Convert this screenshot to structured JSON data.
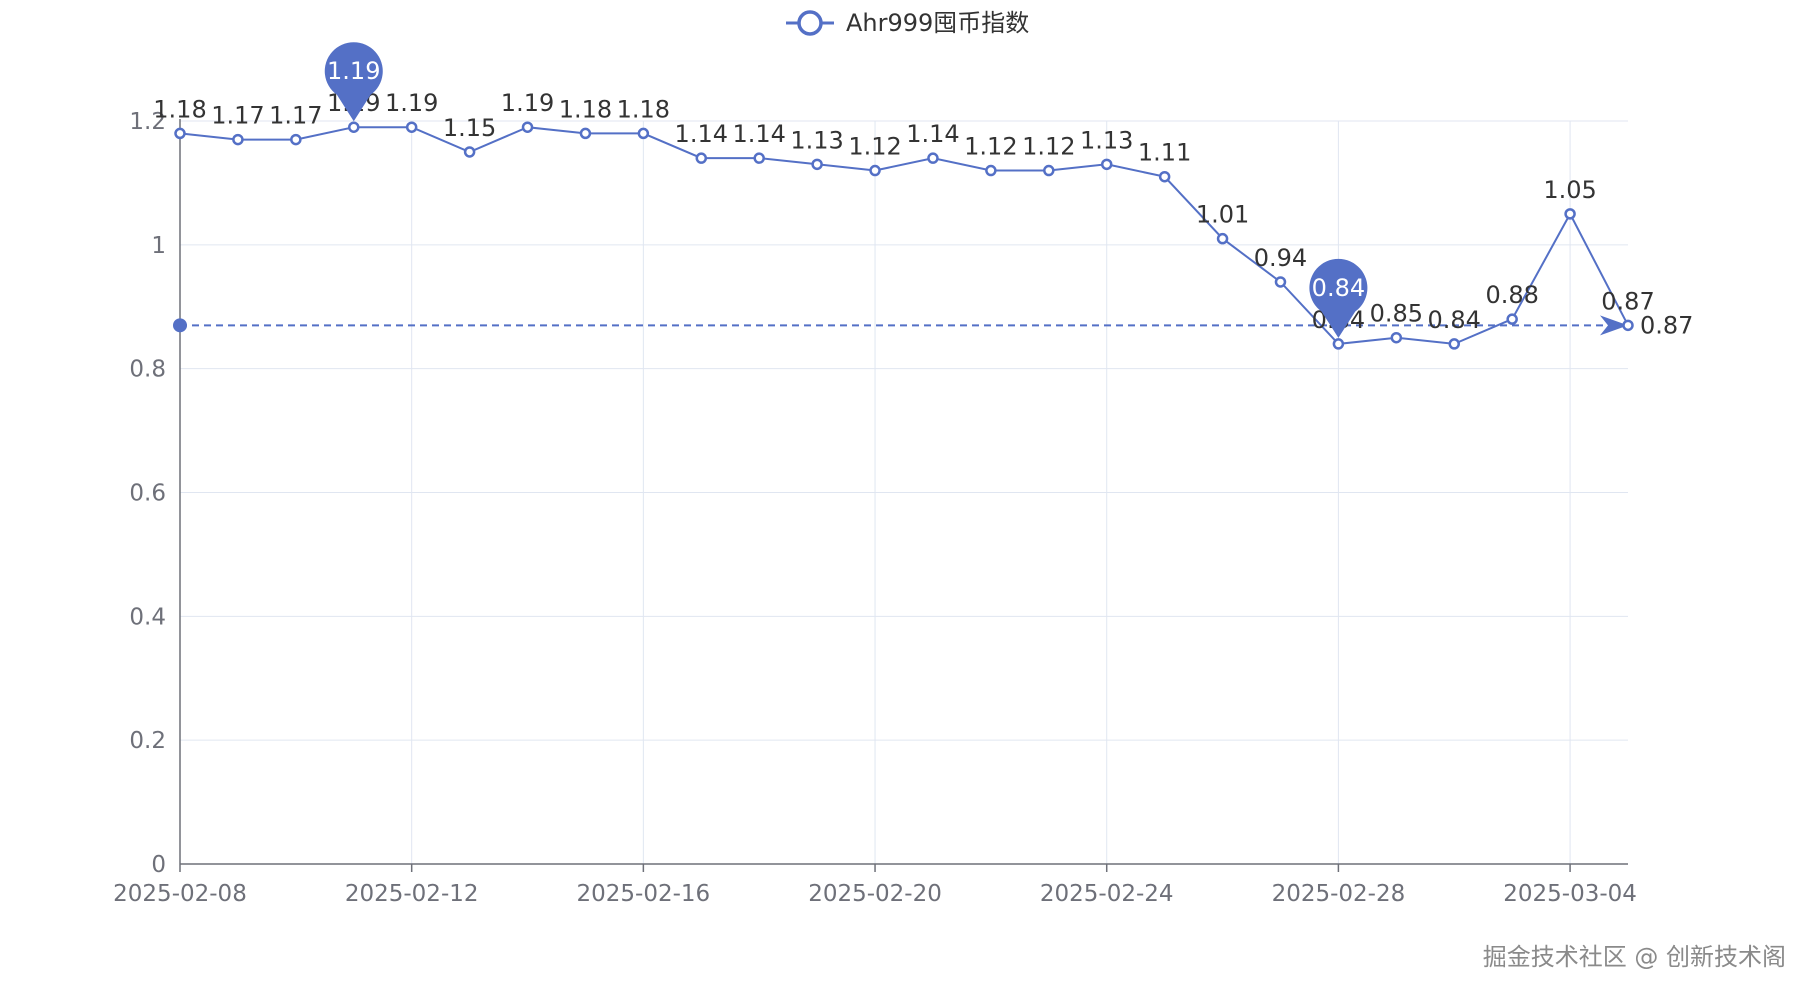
{
  "chart_data": {
    "type": "line",
    "x": [
      "2025-02-08",
      "2025-02-09",
      "2025-02-10",
      "2025-02-11",
      "2025-02-12",
      "2025-02-13",
      "2025-02-14",
      "2025-02-15",
      "2025-02-16",
      "2025-02-17",
      "2025-02-18",
      "2025-02-19",
      "2025-02-20",
      "2025-02-21",
      "2025-02-22",
      "2025-02-23",
      "2025-02-24",
      "2025-02-25",
      "2025-02-26",
      "2025-02-27",
      "2025-02-28",
      "2025-03-01",
      "2025-03-02",
      "2025-03-03",
      "2025-03-04",
      "2025-03-05"
    ],
    "x_tick_labels": [
      "2025-02-08",
      "2025-02-12",
      "2025-02-16",
      "2025-02-20",
      "2025-02-24",
      "2025-02-28",
      "2025-03-04"
    ],
    "series": [
      {
        "name": "Ahr999囤币指数",
        "values": [
          1.18,
          1.17,
          1.17,
          1.19,
          1.19,
          1.15,
          1.19,
          1.18,
          1.18,
          1.14,
          1.14,
          1.13,
          1.12,
          1.14,
          1.12,
          1.12,
          1.13,
          1.11,
          1.01,
          0.94,
          0.84,
          0.85,
          0.84,
          0.88,
          1.05,
          0.87
        ],
        "data_labels": [
          "1.18",
          "1.17",
          "1.17",
          "1.19",
          "1.19",
          "1.15",
          "1.19",
          "1.18",
          "1.18",
          "1.14",
          "1.14",
          "1.13",
          "1.12",
          "1.14",
          "1.12",
          "1.12",
          "1.13",
          "1.11",
          "1.01",
          "0.94",
          "0.84",
          "0.85",
          "0.84",
          "0.88",
          "1.05",
          "0.87"
        ],
        "color": "#5470c6"
      }
    ],
    "mark_points": [
      {
        "label": "1.19",
        "x": "2025-02-11",
        "y": 1.19
      },
      {
        "label": "0.84",
        "x": "2025-02-28",
        "y": 0.84
      }
    ],
    "mark_line": {
      "label": "0.87",
      "y": 0.87,
      "from": "2025-02-08",
      "to": "2025-03-05"
    },
    "ylim": [
      0,
      1.2
    ],
    "y_tick_labels": [
      "0",
      "0.2",
      "0.4",
      "0.6",
      "0.8",
      "1",
      "1.2"
    ],
    "grid": true,
    "legend_position": "top-center",
    "axis_color": "#6e7079",
    "grid_color": "#e0e6f1"
  },
  "watermark": "掘金技术社区 @ 创新技术阁"
}
